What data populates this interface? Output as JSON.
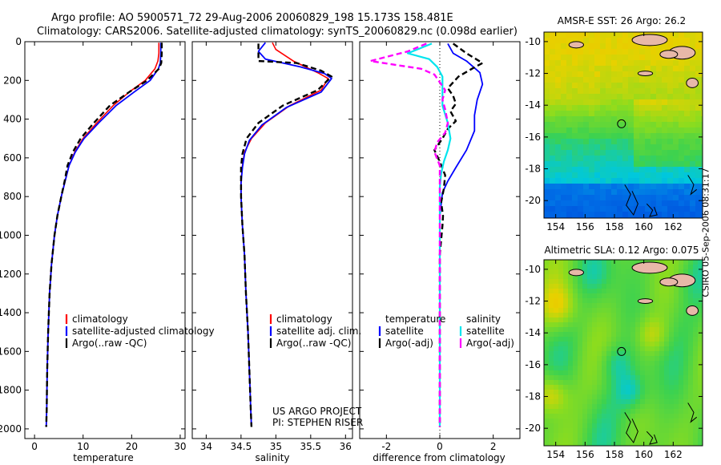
{
  "header": {
    "line1": "Argo profile: AO 5900571_72 29-Aug-2006 20060829_198 15.173S 158.481E",
    "line2": "Climatology: CARS2006. Satellite-adjusted climatology: synTS_20060829.nc (0.098d earlier)"
  },
  "footer_credit": "CSIRO 05-Sep-2006 08:31:17",
  "colors": {
    "clim": "#ff0000",
    "sat": "#0000ff",
    "argo": "#000000",
    "sat_sal": "#00e5ee",
    "argo_sal": "#ff00ff"
  },
  "chart_data": [
    {
      "id": "temperature-panel",
      "type": "line",
      "xlabel": "temperature",
      "xlim": [
        -2,
        31
      ],
      "ylim": [
        0,
        2050
      ],
      "xticks": [
        0,
        10,
        20,
        30
      ],
      "yticks": [
        0,
        200,
        400,
        600,
        800,
        1000,
        1200,
        1400,
        1600,
        1800,
        2000
      ],
      "legend": [
        "climatology",
        "satellite-adjusted climatology",
        "Argo(..raw -QC)"
      ],
      "series": [
        {
          "name": "climatology",
          "style": "clim",
          "points": [
            [
              25.6,
              5
            ],
            [
              25.6,
              60
            ],
            [
              25.4,
              100
            ],
            [
              24.8,
              140
            ],
            [
              22.8,
              200
            ],
            [
              19.5,
              260
            ],
            [
              16.2,
              330
            ],
            [
              12.8,
              420
            ],
            [
              10.0,
              500
            ],
            [
              8.3,
              570
            ],
            [
              7.1,
              640
            ],
            [
              6.3,
              720
            ],
            [
              5.5,
              800
            ],
            [
              4.7,
              900
            ],
            [
              4.1,
              1000
            ],
            [
              3.5,
              1150
            ],
            [
              3.1,
              1300
            ],
            [
              2.8,
              1500
            ],
            [
              2.6,
              1700
            ],
            [
              2.5,
              1900
            ],
            [
              2.4,
              1990
            ]
          ]
        },
        {
          "name": "satellite-adjusted",
          "style": "sat",
          "points": [
            [
              26.0,
              5
            ],
            [
              26.0,
              60
            ],
            [
              25.9,
              110
            ],
            [
              25.5,
              140
            ],
            [
              23.8,
              200
            ],
            [
              20.5,
              260
            ],
            [
              16.8,
              330
            ],
            [
              13.2,
              420
            ],
            [
              10.2,
              500
            ],
            [
              8.4,
              570
            ],
            [
              7.1,
              640
            ],
            [
              6.3,
              720
            ],
            [
              5.5,
              800
            ],
            [
              4.7,
              900
            ],
            [
              4.1,
              1000
            ],
            [
              3.5,
              1150
            ],
            [
              3.1,
              1300
            ],
            [
              2.8,
              1500
            ],
            [
              2.6,
              1700
            ],
            [
              2.5,
              1900
            ],
            [
              2.4,
              1990
            ]
          ]
        },
        {
          "name": "Argo",
          "style": "argo",
          "points": [
            [
              26.2,
              5
            ],
            [
              26.2,
              60
            ],
            [
              26.1,
              110
            ],
            [
              25.6,
              140
            ],
            [
              23.2,
              200
            ],
            [
              19.5,
              260
            ],
            [
              15.5,
              330
            ],
            [
              12.2,
              420
            ],
            [
              9.5,
              500
            ],
            [
              7.9,
              570
            ],
            [
              6.8,
              640
            ],
            [
              6.2,
              720
            ],
            [
              5.5,
              800
            ],
            [
              4.7,
              900
            ],
            [
              4.1,
              1000
            ],
            [
              3.5,
              1150
            ],
            [
              3.1,
              1300
            ],
            [
              2.8,
              1500
            ],
            [
              2.6,
              1700
            ],
            [
              2.5,
              1900
            ],
            [
              2.4,
              1990
            ]
          ]
        }
      ]
    },
    {
      "id": "salinity-panel",
      "type": "line",
      "xlabel": "salinity",
      "xlim": [
        33.8,
        36.1
      ],
      "ylim": [
        0,
        2050
      ],
      "xticks": [
        34,
        34.5,
        35,
        35.5,
        36
      ],
      "legend": [
        "climatology",
        "satellite adj. clim.",
        "Argo(..raw -QC)"
      ],
      "annotation": [
        "US ARGO PROJECT",
        "PI: STEPHEN RISER"
      ],
      "series": [
        {
          "name": "climatology",
          "style": "clim",
          "points": [
            [
              34.95,
              5
            ],
            [
              35.0,
              40
            ],
            [
              35.25,
              100
            ],
            [
              35.6,
              160
            ],
            [
              35.75,
              190
            ],
            [
              35.65,
              250
            ],
            [
              35.2,
              330
            ],
            [
              34.85,
              420
            ],
            [
              34.65,
              500
            ],
            [
              34.55,
              570
            ],
            [
              34.52,
              640
            ],
            [
              34.5,
              720
            ],
            [
              34.5,
              800
            ],
            [
              34.52,
              950
            ],
            [
              34.55,
              1100
            ],
            [
              34.57,
              1300
            ],
            [
              34.6,
              1500
            ],
            [
              34.62,
              1700
            ],
            [
              34.64,
              1900
            ],
            [
              34.65,
              1990
            ]
          ]
        },
        {
          "name": "satellite-adjusted",
          "style": "sat",
          "points": [
            [
              34.85,
              5
            ],
            [
              34.75,
              50
            ],
            [
              34.85,
              90
            ],
            [
              35.35,
              130
            ],
            [
              35.7,
              165
            ],
            [
              35.8,
              190
            ],
            [
              35.65,
              260
            ],
            [
              35.15,
              340
            ],
            [
              34.8,
              430
            ],
            [
              34.62,
              510
            ],
            [
              34.55,
              580
            ],
            [
              34.52,
              650
            ],
            [
              34.5,
              730
            ],
            [
              34.5,
              800
            ],
            [
              34.52,
              950
            ],
            [
              34.55,
              1100
            ],
            [
              34.57,
              1300
            ],
            [
              34.6,
              1500
            ],
            [
              34.62,
              1700
            ],
            [
              34.64,
              1900
            ],
            [
              34.65,
              1990
            ]
          ]
        },
        {
          "name": "Argo",
          "style": "argo",
          "points": [
            [
              34.75,
              10
            ],
            [
              34.75,
              100
            ],
            [
              35.3,
              110
            ],
            [
              35.65,
              150
            ],
            [
              35.8,
              180
            ],
            [
              35.6,
              250
            ],
            [
              35.1,
              330
            ],
            [
              34.75,
              420
            ],
            [
              34.58,
              500
            ],
            [
              34.52,
              580
            ],
            [
              34.5,
              650
            ],
            [
              34.5,
              720
            ],
            [
              34.5,
              800
            ],
            [
              34.52,
              950
            ],
            [
              34.55,
              1100
            ],
            [
              34.57,
              1300
            ],
            [
              34.6,
              1500
            ],
            [
              34.62,
              1700
            ],
            [
              34.64,
              1900
            ],
            [
              34.65,
              1990
            ]
          ]
        }
      ]
    },
    {
      "id": "difference-panel",
      "type": "line",
      "xlabel": "difference from climatology",
      "xlim": [
        -3,
        3
      ],
      "ylim": [
        0,
        2050
      ],
      "xticks": [
        -2,
        0,
        2
      ],
      "legend_headers": [
        "temperature",
        "salinity"
      ],
      "legend": [
        "satellite",
        "Argo(-adj)",
        "satellite",
        "Argo(-adj)"
      ],
      "series": [
        {
          "name": "temperature satellite",
          "style": "sat",
          "points": [
            [
              0.3,
              10
            ],
            [
              0.5,
              60
            ],
            [
              1.0,
              100
            ],
            [
              1.5,
              160
            ],
            [
              1.6,
              220
            ],
            [
              1.4,
              300
            ],
            [
              1.3,
              380
            ],
            [
              1.3,
              460
            ],
            [
              1.0,
              560
            ],
            [
              0.6,
              650
            ],
            [
              0.3,
              720
            ],
            [
              0.1,
              780
            ],
            [
              0.0,
              900
            ],
            [
              0.0,
              1100
            ],
            [
              0.0,
              1500
            ],
            [
              0.0,
              1990
            ]
          ]
        },
        {
          "name": "temperature Argo",
          "style": "argo",
          "points": [
            [
              0.5,
              10
            ],
            [
              1.0,
              60
            ],
            [
              1.6,
              110
            ],
            [
              1.2,
              140
            ],
            [
              0.7,
              180
            ],
            [
              0.5,
              210
            ],
            [
              0.3,
              240
            ],
            [
              0.5,
              280
            ],
            [
              0.6,
              320
            ],
            [
              0.4,
              360
            ],
            [
              0.6,
              410
            ],
            [
              0.3,
              450
            ],
            [
              0.1,
              500
            ],
            [
              -0.2,
              560
            ],
            [
              0.0,
              620
            ],
            [
              0.2,
              690
            ],
            [
              0.15,
              760
            ],
            [
              0.05,
              830
            ],
            [
              0.12,
              900
            ],
            [
              0.1,
              950
            ],
            [
              0.0,
              1100
            ],
            [
              0.0,
              1500
            ],
            [
              0.0,
              1990
            ]
          ]
        },
        {
          "name": "salinity satellite",
          "style": "sat_sal",
          "points": [
            [
              -0.3,
              10
            ],
            [
              -1.2,
              60
            ],
            [
              -0.4,
              90
            ],
            [
              -0.1,
              130
            ],
            [
              0.1,
              180
            ],
            [
              0.1,
              250
            ],
            [
              0.1,
              330
            ],
            [
              0.3,
              420
            ],
            [
              0.4,
              500
            ],
            [
              0.3,
              560
            ],
            [
              0.15,
              620
            ],
            [
              0.05,
              680
            ],
            [
              0.0,
              750
            ],
            [
              0.0,
              1000
            ],
            [
              0.0,
              1990
            ]
          ]
        },
        {
          "name": "salinity Argo",
          "style": "argo_sal",
          "points": [
            [
              -0.5,
              10
            ],
            [
              -1.2,
              50
            ],
            [
              -2.6,
              100
            ],
            [
              -0.7,
              140
            ],
            [
              -0.2,
              170
            ],
            [
              0.0,
              210
            ],
            [
              0.2,
              250
            ],
            [
              0.1,
              300
            ],
            [
              0.2,
              350
            ],
            [
              0.3,
              420
            ],
            [
              0.2,
              470
            ],
            [
              -0.1,
              520
            ],
            [
              -0.2,
              570
            ],
            [
              0.0,
              640
            ],
            [
              0.0,
              700
            ],
            [
              0.0,
              1990
            ]
          ]
        }
      ]
    },
    {
      "id": "sst-map",
      "type": "heatmap",
      "title": "AMSR-E SST: 26 Argo: 26.2",
      "xticks": [
        154,
        156,
        158,
        160,
        162
      ],
      "yticks": [
        -10,
        -12,
        -14,
        -16,
        -18,
        -20
      ],
      "xlim": [
        153.2,
        164
      ],
      "ylim": [
        -21.1,
        -9.4
      ],
      "marker": [
        158.48,
        -15.17
      ]
    },
    {
      "id": "sla-map",
      "type": "heatmap",
      "title": "Altimetric SLA: 0.12 Argo: 0.075",
      "xticks": [
        154,
        156,
        158,
        160,
        162
      ],
      "yticks": [
        -10,
        -12,
        -14,
        -16,
        -18,
        -20
      ],
      "xlim": [
        153.2,
        164
      ],
      "ylim": [
        -21.1,
        -9.4
      ],
      "marker": [
        158.48,
        -15.17
      ]
    }
  ]
}
